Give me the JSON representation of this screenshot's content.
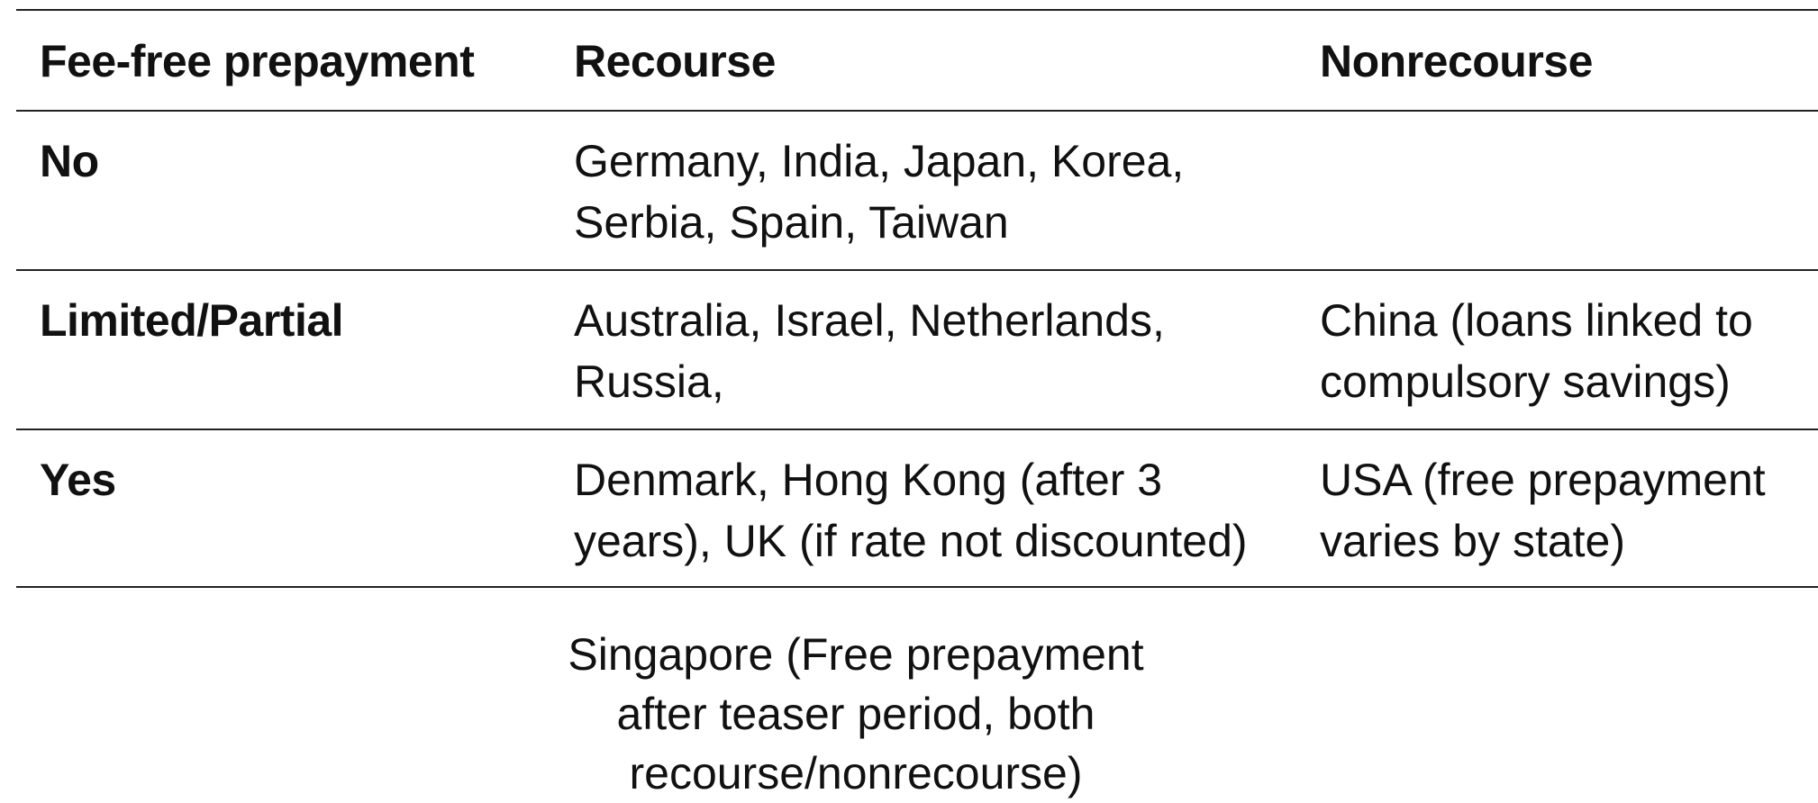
{
  "table": {
    "headers": [
      "Fee-free prepayment",
      "Recourse",
      "Nonrecourse"
    ],
    "rows": [
      {
        "label": "No",
        "recourse_lines": [
          "Germany, India, Japan, Korea,",
          "Serbia, Spain, Taiwan"
        ],
        "nonrecourse_lines": [
          "",
          ""
        ]
      },
      {
        "label": "Limited/Partial",
        "recourse_lines": [
          "Australia, Israel, Netherlands,",
          "Russia,"
        ],
        "nonrecourse_lines": [
          "China (loans linked to",
          "compulsory savings)"
        ]
      },
      {
        "label": "Yes",
        "recourse_lines": [
          "Denmark, Hong Kong (after 3",
          "years), UK (if rate not discounted)"
        ],
        "nonrecourse_lines": [
          "USA (free prepayment",
          "varies by state)"
        ]
      }
    ]
  },
  "footnote_lines": [
    "Singapore (Free prepayment after teaser period, both",
    "recourse/nonrecourse)"
  ]
}
